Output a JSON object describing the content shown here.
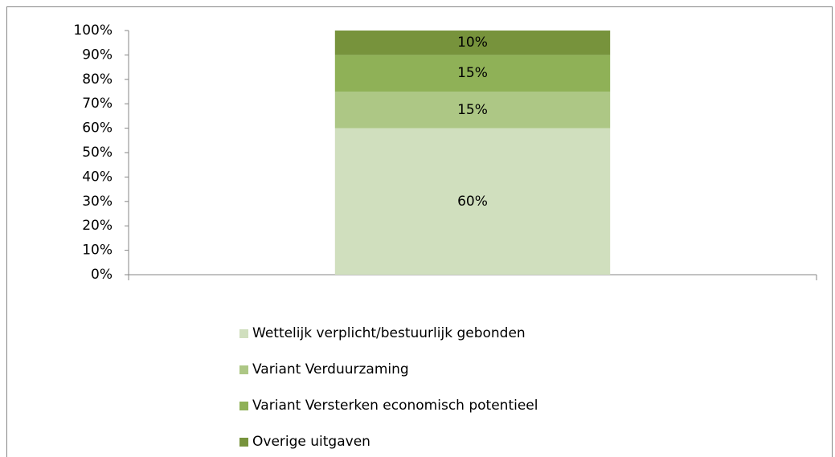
{
  "chart_data": {
    "type": "stacked_bar",
    "categories": [
      null
    ],
    "series": [
      {
        "name": "Wettelijk verplicht/bestuurlijk gebonden",
        "color": "#d0dfbe",
        "values": [
          60
        ],
        "value_labels": [
          "60%"
        ]
      },
      {
        "name": "Variant Verduurzaming",
        "color": "#adc785",
        "values": [
          15
        ],
        "value_labels": [
          "15%"
        ]
      },
      {
        "name": "Variant Versterken economisch potentieel",
        "color": "#8fb157",
        "values": [
          15
        ],
        "value_labels": [
          "15%"
        ]
      },
      {
        "name": "Overige uitgaven",
        "color": "#77933c",
        "values": [
          10
        ],
        "value_labels": [
          "10%"
        ]
      }
    ],
    "ylim": [
      0,
      100
    ],
    "yticks": [
      {
        "value": 0,
        "label": "0%"
      },
      {
        "value": 10,
        "label": "10%"
      },
      {
        "value": 20,
        "label": "20%"
      },
      {
        "value": 30,
        "label": "30%"
      },
      {
        "value": 40,
        "label": "40%"
      },
      {
        "value": 50,
        "label": "50%"
      },
      {
        "value": 60,
        "label": "60%"
      },
      {
        "value": 70,
        "label": "70%"
      },
      {
        "value": 80,
        "label": "80%"
      },
      {
        "value": 90,
        "label": "90%"
      },
      {
        "value": 100,
        "label": "100%"
      }
    ],
    "legend": "bottom"
  }
}
